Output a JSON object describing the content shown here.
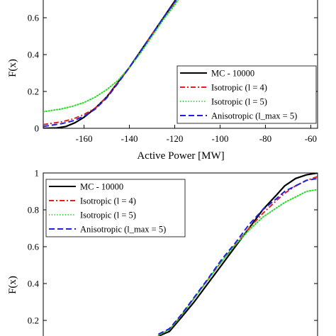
{
  "chart_data": [
    {
      "type": "line",
      "xlabel": "Active Power [MW]",
      "ylabel": "F(x)",
      "xlim": [
        -178,
        -57
      ],
      "ylim": [
        0,
        0.78
      ],
      "xticks": [
        "-160",
        "-140",
        "-120",
        "-100",
        "-80",
        "-60"
      ],
      "yticks": [
        "0",
        "0.2",
        "0.4",
        "0.6"
      ],
      "grid": false,
      "legend_position": "bottom-right",
      "series": [
        {
          "name": "MC - 10000",
          "color": "#000000",
          "dash": "solid",
          "x": [
            -178,
            -172,
            -168,
            -164,
            -160,
            -155,
            -150,
            -145,
            -140,
            -135,
            -130,
            -125,
            -120,
            -116
          ],
          "y": [
            0.0,
            0.002,
            0.01,
            0.03,
            0.06,
            0.11,
            0.17,
            0.25,
            0.33,
            0.42,
            0.51,
            0.6,
            0.69,
            0.77
          ]
        },
        {
          "name": "Isotropic (l = 4)",
          "color": "#e02020",
          "dash": "dashdot",
          "x": [
            -178,
            -170,
            -165,
            -160,
            -155,
            -150,
            -145,
            -140,
            -135,
            -130,
            -125,
            -120,
            -116
          ],
          "y": [
            0.02,
            0.035,
            0.05,
            0.075,
            0.11,
            0.17,
            0.25,
            0.33,
            0.42,
            0.51,
            0.6,
            0.68,
            0.75
          ]
        },
        {
          "name": "Isotropic (l = 5)",
          "color": "#22dd22",
          "dash": "dotted",
          "x": [
            -178,
            -170,
            -165,
            -160,
            -155,
            -150,
            -145,
            -140,
            -135,
            -130,
            -125,
            -120,
            -116
          ],
          "y": [
            0.09,
            0.105,
            0.12,
            0.14,
            0.17,
            0.21,
            0.26,
            0.33,
            0.41,
            0.5,
            0.59,
            0.67,
            0.74
          ]
        },
        {
          "name": "Anisotropic (l_max = 5)",
          "color": "#2020e0",
          "dash": "dashed",
          "x": [
            -178,
            -170,
            -165,
            -160,
            -155,
            -150,
            -145,
            -140,
            -135,
            -130,
            -125,
            -120,
            -116
          ],
          "y": [
            0.01,
            0.025,
            0.04,
            0.065,
            0.105,
            0.165,
            0.245,
            0.33,
            0.42,
            0.51,
            0.6,
            0.685,
            0.76
          ]
        }
      ]
    },
    {
      "type": "line",
      "xlabel": "",
      "ylabel": "F(x)",
      "xlim": [
        0,
        1
      ],
      "ylim": [
        0.115,
        1.0
      ],
      "yticks": [
        "0.2",
        "0.4",
        "0.6",
        "0.8",
        "1"
      ],
      "grid": false,
      "legend_position": "top-left",
      "series": [
        {
          "name": "MC - 10000",
          "color": "#000000",
          "dash": "solid",
          "x": [
            0.42,
            0.46,
            0.5,
            0.55,
            0.6,
            0.65,
            0.7,
            0.75,
            0.8,
            0.85,
            0.88,
            0.92,
            0.96,
            1.0
          ],
          "y": [
            0.115,
            0.14,
            0.21,
            0.3,
            0.4,
            0.5,
            0.6,
            0.7,
            0.8,
            0.88,
            0.93,
            0.97,
            0.99,
            1.0
          ]
        },
        {
          "name": "Isotropic (l = 4)",
          "color": "#e02020",
          "dash": "dashdot",
          "x": [
            0.42,
            0.46,
            0.5,
            0.55,
            0.6,
            0.65,
            0.7,
            0.75,
            0.8,
            0.85,
            0.88,
            0.92,
            0.96,
            1.0
          ],
          "y": [
            0.12,
            0.15,
            0.22,
            0.32,
            0.42,
            0.52,
            0.61,
            0.7,
            0.78,
            0.85,
            0.89,
            0.93,
            0.96,
            0.98
          ]
        },
        {
          "name": "Isotropic (l = 5)",
          "color": "#22dd22",
          "dash": "dotted",
          "x": [
            0.42,
            0.46,
            0.5,
            0.55,
            0.6,
            0.65,
            0.7,
            0.75,
            0.8,
            0.85,
            0.88,
            0.92,
            0.96,
            1.0
          ],
          "y": [
            0.12,
            0.15,
            0.22,
            0.32,
            0.42,
            0.52,
            0.61,
            0.69,
            0.76,
            0.81,
            0.84,
            0.87,
            0.9,
            0.91
          ]
        },
        {
          "name": "Anisotropic (l_max = 5)",
          "color": "#2020e0",
          "dash": "dashed",
          "x": [
            0.42,
            0.46,
            0.5,
            0.55,
            0.6,
            0.65,
            0.7,
            0.75,
            0.8,
            0.85,
            0.88,
            0.92,
            0.96,
            1.0
          ],
          "y": [
            0.125,
            0.155,
            0.225,
            0.325,
            0.425,
            0.53,
            0.62,
            0.72,
            0.8,
            0.86,
            0.9,
            0.93,
            0.96,
            0.97
          ]
        }
      ]
    }
  ]
}
